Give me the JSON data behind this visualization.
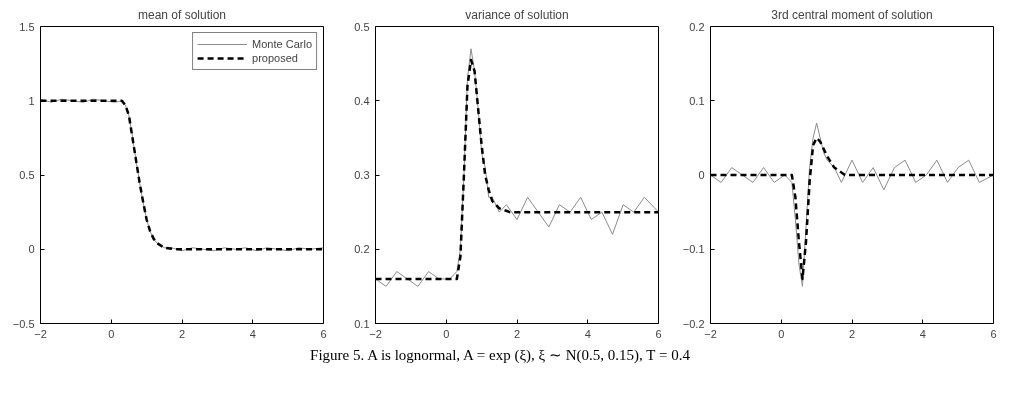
{
  "chart_data": [
    {
      "type": "line",
      "title": "mean of solution",
      "xlim": [
        -2,
        6
      ],
      "xticks": [
        -2,
        0,
        2,
        4,
        6
      ],
      "ylim": [
        -0.5,
        1.5
      ],
      "yticks": [
        -0.5,
        0,
        0.5,
        1,
        1.5
      ],
      "grid": false,
      "legend": "top right",
      "marker": "none",
      "annotations": [
        "Figure 5. A is lognormal, A = exp (ξ), ξ ∼ N(0.5, 0.15), T = 0.4"
      ],
      "series": [
        {
          "name": "Monte Carlo",
          "color": "#8c8c8c",
          "line_style": "solid",
          "x": [
            -2,
            -1.7,
            -1.4,
            -1.1,
            -0.8,
            -0.5,
            -0.2,
            0.1,
            0.3,
            0.4,
            0.5,
            0.6,
            0.7,
            0.8,
            0.9,
            1.0,
            1.1,
            1.2,
            1.3,
            1.5,
            1.7,
            2.0,
            2.3,
            2.6,
            2.9,
            3.2,
            3.5,
            3.8,
            4.1,
            4.4,
            4.7,
            5.0,
            5.3,
            5.6,
            6.0
          ],
          "values": [
            1.01,
            0.99,
            1.01,
            1.0,
            0.99,
            1.01,
            1.0,
            0.99,
            1.0,
            0.97,
            0.9,
            0.76,
            0.6,
            0.45,
            0.32,
            0.2,
            0.12,
            0.07,
            0.04,
            0.01,
            0.01,
            -0.01,
            0.01,
            0,
            -0.01,
            0.01,
            0,
            0.01,
            -0.01,
            0.01,
            0,
            -0.01,
            0.01,
            0,
            0.01
          ]
        },
        {
          "name": "proposed",
          "color": "#000000",
          "line_style": "dashed",
          "x": [
            -2,
            0.3,
            0.4,
            0.5,
            0.6,
            0.7,
            0.8,
            0.9,
            1.0,
            1.1,
            1.2,
            1.3,
            1.5,
            1.8,
            6
          ],
          "values": [
            1,
            1,
            0.97,
            0.9,
            0.75,
            0.6,
            0.45,
            0.32,
            0.2,
            0.12,
            0.07,
            0.04,
            0.01,
            0,
            0
          ]
        }
      ]
    },
    {
      "type": "line",
      "title": "variance of solution",
      "xlim": [
        -2,
        6
      ],
      "xticks": [
        -2,
        0,
        2,
        4,
        6
      ],
      "ylim": [
        0.1,
        0.5
      ],
      "yticks": [
        0.1,
        0.2,
        0.3,
        0.4,
        0.5
      ],
      "grid": false,
      "marker": "none",
      "series": [
        {
          "color": "#8c8c8c",
          "line_style": "solid",
          "x": [
            -2,
            -1.7,
            -1.4,
            -1.1,
            -0.8,
            -0.5,
            -0.2,
            0.1,
            0.3,
            0.4,
            0.5,
            0.6,
            0.7,
            0.8,
            0.9,
            1.0,
            1.1,
            1.2,
            1.3,
            1.5,
            1.7,
            2.0,
            2.3,
            2.6,
            2.9,
            3.2,
            3.5,
            3.8,
            4.1,
            4.4,
            4.7,
            5.0,
            5.3,
            5.6,
            6.0
          ],
          "values": [
            0.16,
            0.15,
            0.17,
            0.16,
            0.15,
            0.17,
            0.16,
            0.16,
            0.17,
            0.2,
            0.3,
            0.43,
            0.47,
            0.44,
            0.39,
            0.33,
            0.31,
            0.27,
            0.27,
            0.25,
            0.26,
            0.24,
            0.27,
            0.25,
            0.23,
            0.26,
            0.25,
            0.27,
            0.24,
            0.25,
            0.22,
            0.26,
            0.25,
            0.27,
            0.25
          ]
        },
        {
          "color": "#000000",
          "line_style": "dashed",
          "x": [
            -2,
            0.3,
            0.4,
            0.5,
            0.6,
            0.7,
            0.8,
            0.9,
            1.0,
            1.1,
            1.2,
            1.3,
            1.5,
            1.8,
            6
          ],
          "values": [
            0.16,
            0.16,
            0.19,
            0.3,
            0.42,
            0.455,
            0.44,
            0.39,
            0.34,
            0.3,
            0.28,
            0.265,
            0.255,
            0.25,
            0.25
          ]
        }
      ]
    },
    {
      "type": "line",
      "title": "3rd central moment of solution",
      "xlim": [
        -2,
        6
      ],
      "xticks": [
        -2,
        0,
        2,
        4,
        6
      ],
      "ylim": [
        -0.2,
        0.2
      ],
      "yticks": [
        -0.2,
        -0.1,
        0,
        0.1,
        0.2
      ],
      "grid": false,
      "marker": "none",
      "series": [
        {
          "color": "#8c8c8c",
          "line_style": "solid",
          "x": [
            -2,
            -1.7,
            -1.4,
            -1.1,
            -0.8,
            -0.5,
            -0.2,
            0.1,
            0.3,
            0.4,
            0.5,
            0.6,
            0.7,
            0.8,
            0.9,
            1.0,
            1.1,
            1.2,
            1.3,
            1.5,
            1.7,
            2.0,
            2.3,
            2.6,
            2.9,
            3.2,
            3.5,
            3.8,
            4.1,
            4.4,
            4.7,
            5.0,
            5.3,
            5.6,
            6.0
          ],
          "values": [
            0,
            -0.01,
            0.01,
            0,
            -0.01,
            0.01,
            -0.01,
            0,
            -0.01,
            -0.06,
            -0.12,
            -0.15,
            -0.07,
            0.01,
            0.05,
            0.07,
            0.05,
            0.03,
            0.02,
            0.01,
            -0.01,
            0.02,
            -0.01,
            0.01,
            -0.02,
            0.01,
            0.02,
            -0.01,
            0,
            0.02,
            -0.01,
            0.01,
            0.02,
            -0.01,
            0
          ]
        },
        {
          "color": "#000000",
          "line_style": "dashed",
          "x": [
            -2,
            0.3,
            0.4,
            0.5,
            0.6,
            0.7,
            0.8,
            0.9,
            1.0,
            1.1,
            1.2,
            1.3,
            1.5,
            1.8,
            6
          ],
          "values": [
            0,
            0,
            -0.03,
            -0.09,
            -0.14,
            -0.09,
            -0.01,
            0.04,
            0.05,
            0.045,
            0.035,
            0.025,
            0.01,
            0,
            0
          ]
        }
      ]
    }
  ]
}
